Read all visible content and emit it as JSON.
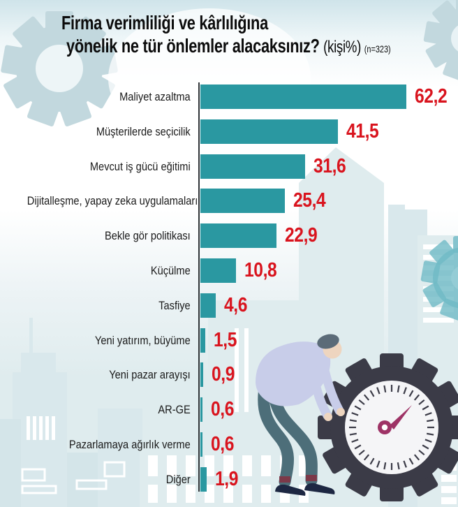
{
  "title": {
    "line1": "Firma verimliliği ve kârlılığına",
    "line2": "yönelik ne tür önlemler alacaksınız?",
    "unit_note": "(kişi%)",
    "sample_note": "(n=323)"
  },
  "colors": {
    "bar": "#2a98a1",
    "red": "#d9141e",
    "axis": "#2f3437",
    "ink": "#0c0c0c",
    "label": "#1a1a1a",
    "bg_top": "#cfe4ea",
    "skyline": "#d9e8ec",
    "skyline2": "#dfecee",
    "gear_light": "#c2d8de",
    "gear_teal": "#6fbac6",
    "gear_dark": "#3b3b47",
    "gauge_face": "#f5f5f7",
    "needle": "#9e3366",
    "shirt": "#c8cde9",
    "pants": "#4d6e79",
    "skin": "#eed5bf",
    "hair": "#5b6b78",
    "shoe": "#1d2742",
    "sock": "#7c3949"
  },
  "chart_data": {
    "type": "bar",
    "orientation": "horizontal",
    "title": "Firma verimliliği ve kârlılığına yönelik ne tür önlemler alacaksınız?",
    "unit": "kişi%",
    "sample_size_note": "n=323",
    "categories": [
      "Maliyet azaltma",
      "Müşterilerde seçicilik",
      "Mevcut iş gücü eğitimi",
      "Dijitalleşme, yapay zeka uygulamaları",
      "Bekle gör politikası",
      "Küçülme",
      "Tasfiye",
      "Yeni yatırım, büyüme",
      "Yeni pazar arayışı",
      "AR-GE",
      "Pazarlamaya ağırlık verme",
      "Diğer"
    ],
    "values": [
      62.2,
      41.5,
      31.6,
      25.4,
      22.9,
      10.8,
      4.6,
      1.5,
      0.9,
      0.6,
      0.6,
      1.9
    ],
    "value_labels": [
      "62,2",
      "41,5",
      "31,6",
      "25,4",
      "22,9",
      "10,8",
      "4,6",
      "1,5",
      "0,9",
      "0,6",
      "0,6",
      "1,9"
    ],
    "xlim": [
      0,
      65
    ],
    "grid": false,
    "legend": "none",
    "bar_color": "#2a98a1",
    "value_label_color": "#d9141e"
  }
}
